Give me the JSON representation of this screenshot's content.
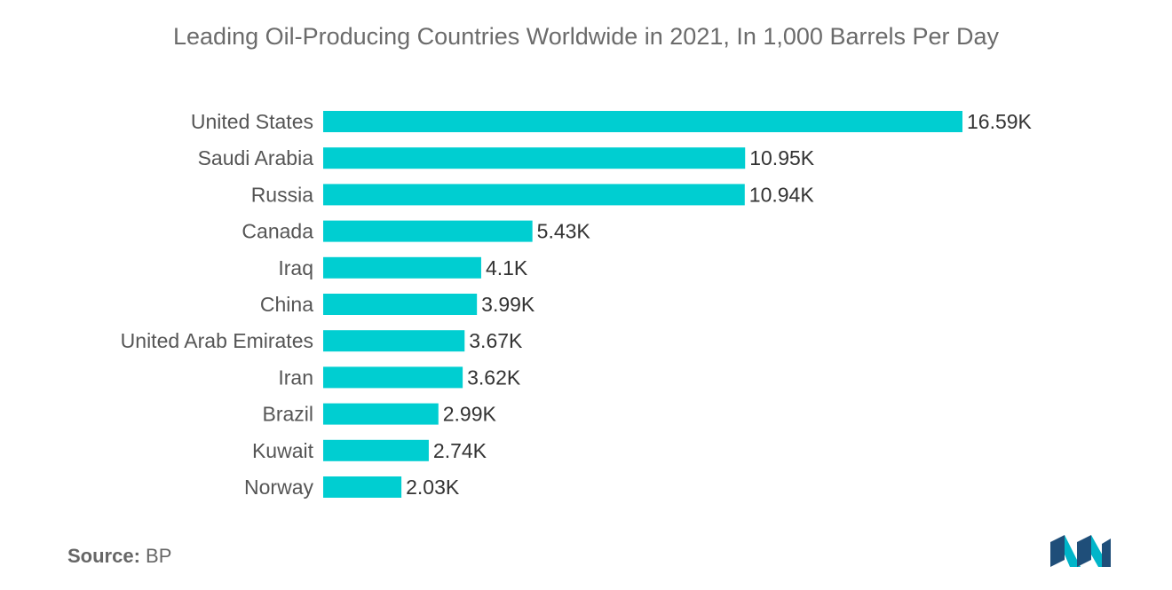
{
  "chart_data": {
    "type": "bar",
    "orientation": "horizontal",
    "title": "Leading Oil-Producing Countries Worldwide in 2021, In 1,000 Barrels Per Day",
    "categories": [
      "United States",
      "Saudi Arabia",
      "Russia",
      "Canada",
      "Iraq",
      "China",
      "United Arab Emirates",
      "Iran",
      "Brazil",
      "Kuwait",
      "Norway"
    ],
    "values": [
      16.59,
      10.95,
      10.94,
      5.43,
      4.1,
      3.99,
      3.67,
      3.62,
      2.99,
      2.74,
      2.03
    ],
    "value_labels": [
      "16.59K",
      "10.95K",
      "10.94K",
      "5.43K",
      "4.1K",
      "3.99K",
      "3.67K",
      "3.62K",
      "2.99K",
      "2.74K",
      "2.03K"
    ],
    "xlabel": "",
    "ylabel": "",
    "grid": false,
    "legend": "none",
    "bar_color": "#00ced1"
  },
  "source": {
    "label": "Source:",
    "value": "BP"
  },
  "logo": {
    "icon": "mordor-logo-icon",
    "colors": [
      "#1f4e79",
      "#00b5c9"
    ]
  }
}
